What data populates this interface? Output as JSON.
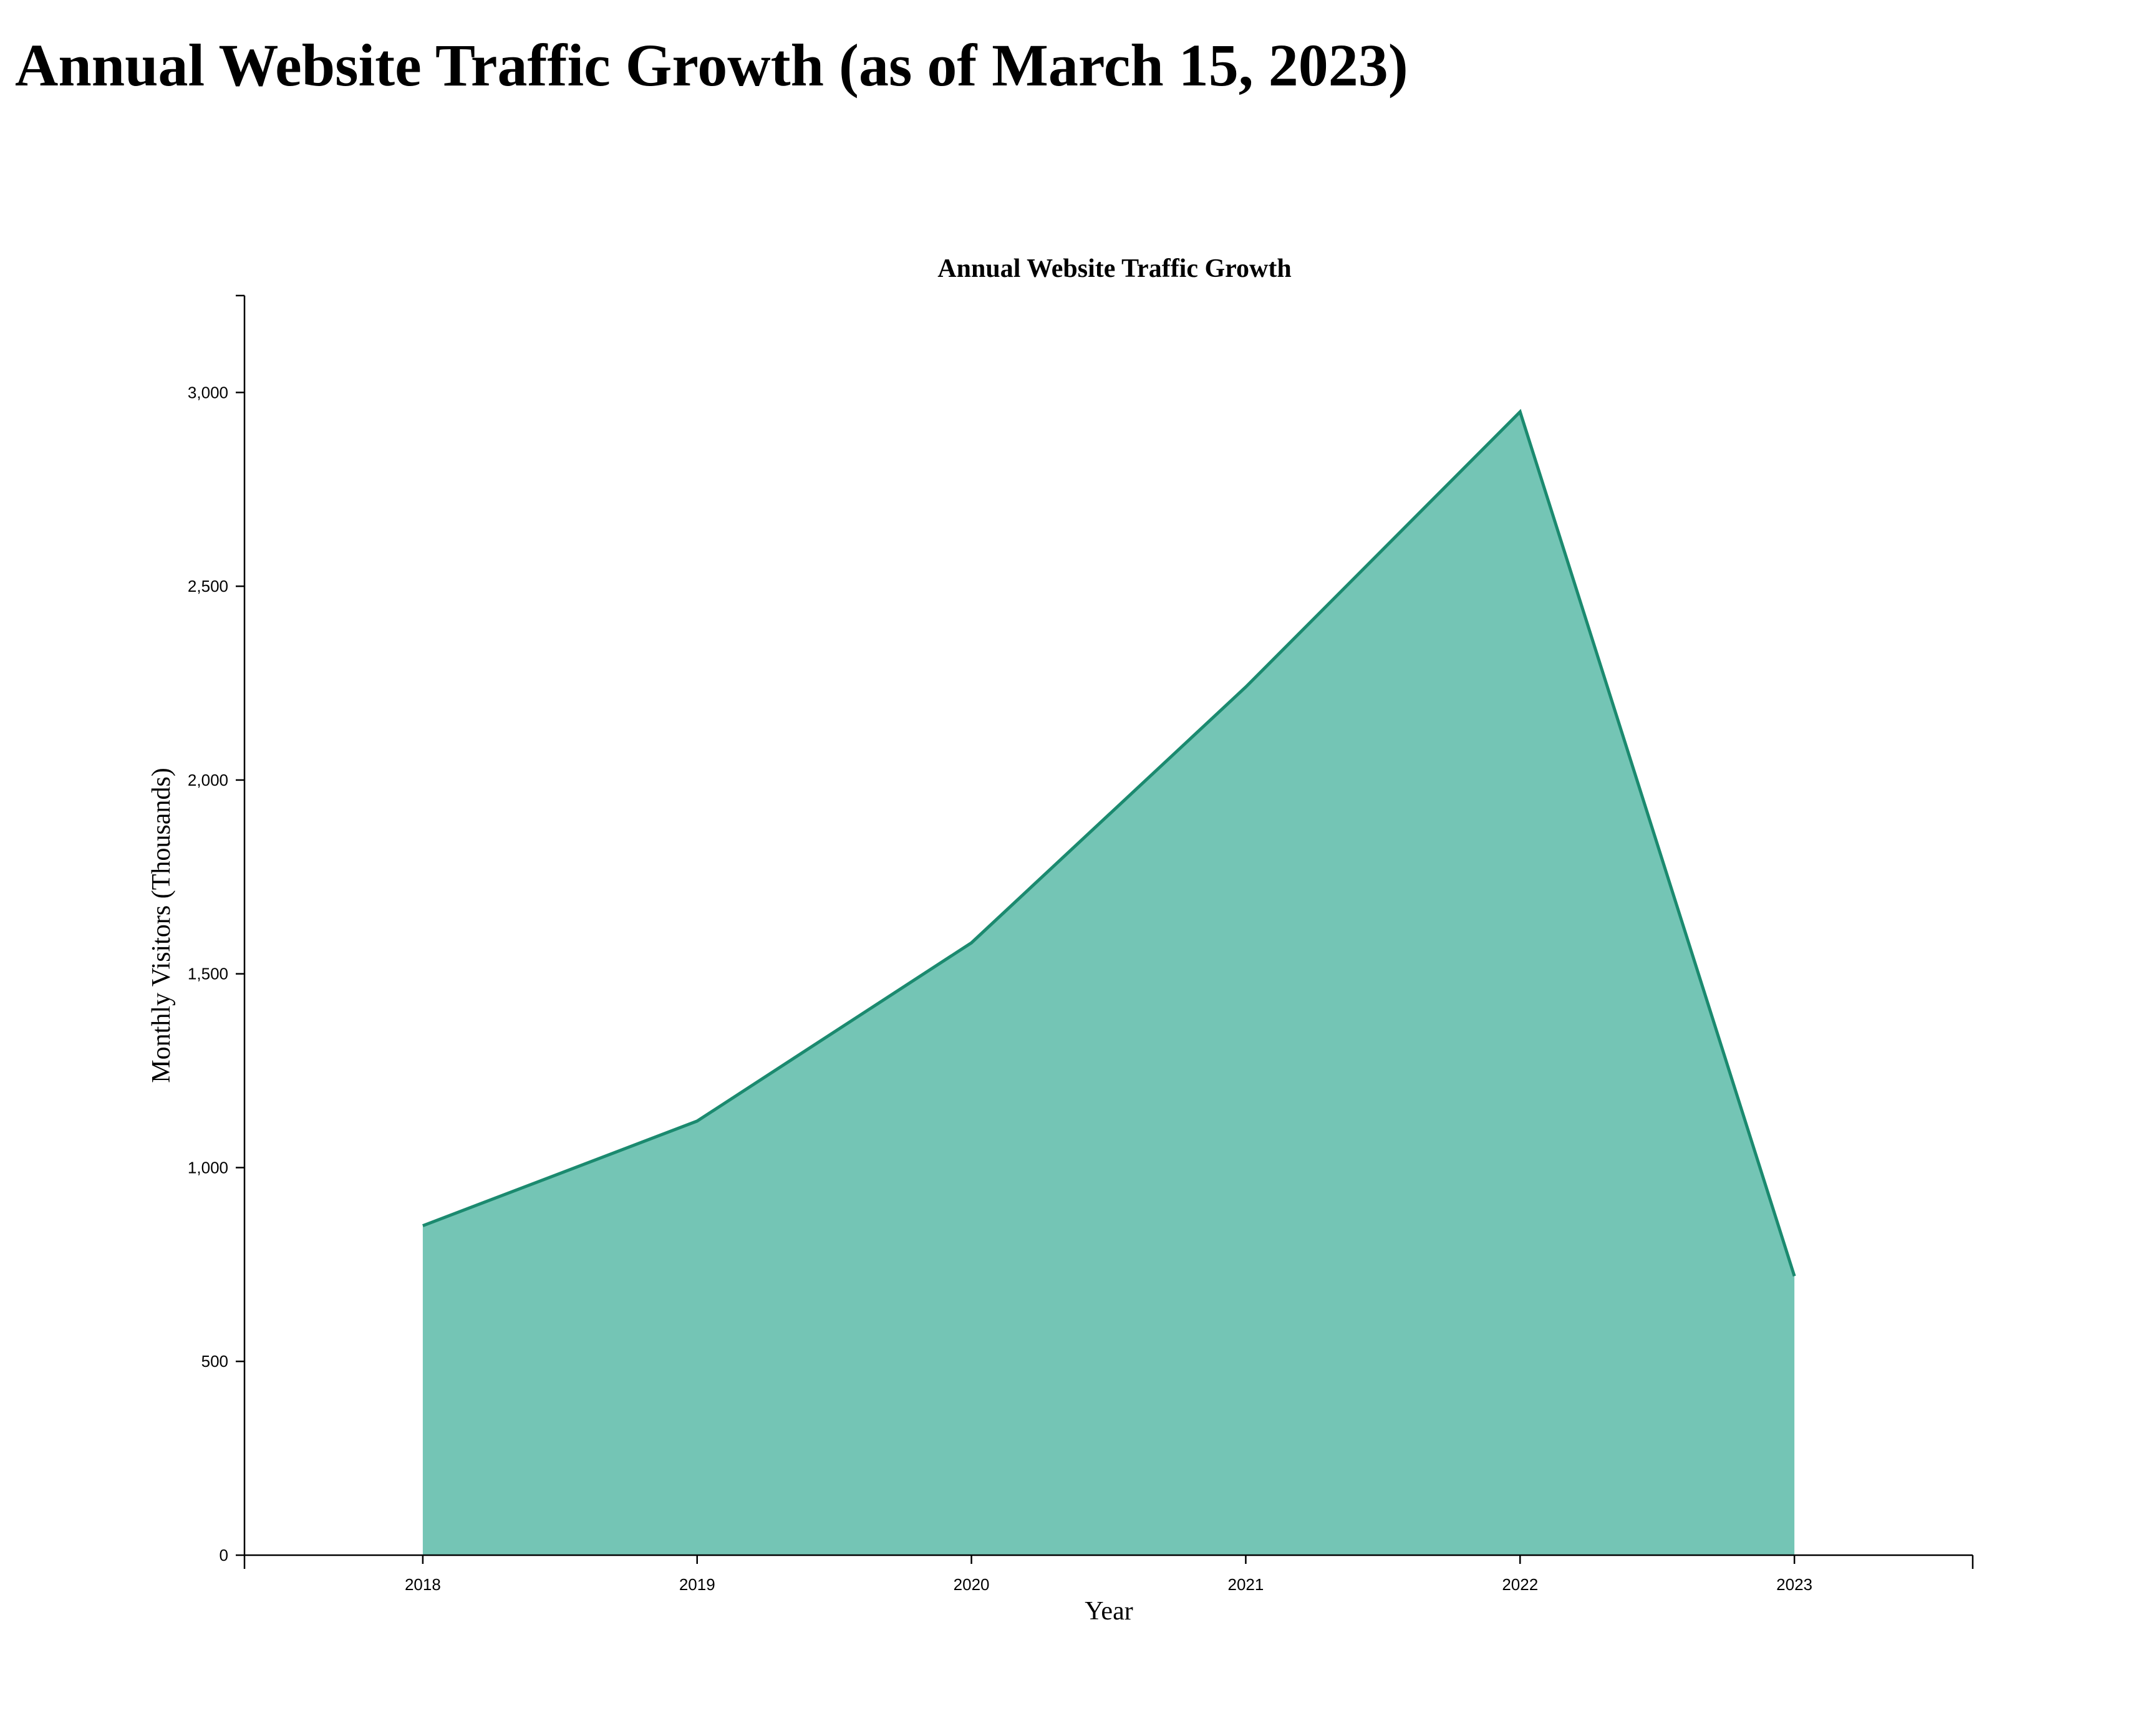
{
  "page": {
    "title": "Annual Website Traffic Growth (as of March 15, 2023)"
  },
  "colors": {
    "area_fill": "#74c5b5",
    "line_stroke": "#1b8a6f",
    "axis": "#000000"
  },
  "chart_data": {
    "type": "area",
    "title": "Annual Website Traffic Growth",
    "xlabel": "Year",
    "ylabel": "Monthly Visitors (Thousands)",
    "x": [
      "2018",
      "2019",
      "2020",
      "2021",
      "2022",
      "2023"
    ],
    "values": [
      850,
      1120,
      1580,
      2240,
      2950,
      720
    ],
    "xlim": [
      "mid-2017",
      "mid-2023"
    ],
    "ylim": [
      0,
      3250
    ],
    "yticks": [
      0,
      500,
      1000,
      1500,
      2000,
      2500,
      3000
    ],
    "ytick_labels": [
      "0",
      "500",
      "1,000",
      "1,500",
      "2,000",
      "2,500",
      "3,000"
    ],
    "grid": false,
    "legend": "none"
  }
}
